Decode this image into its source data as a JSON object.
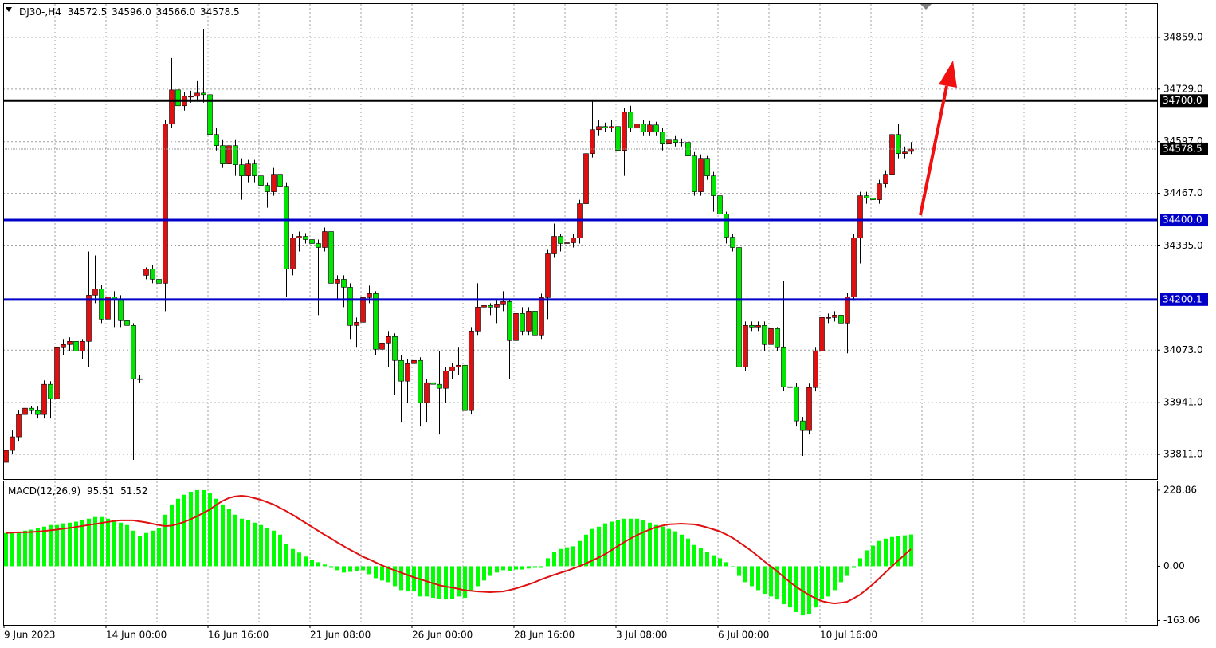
{
  "chart_data": [
    {
      "type": "candlestick",
      "info_label": "DJ30-,H4",
      "ohlc_labels": [
        "34572.5",
        "34596.0",
        "34566.0",
        "34578.5"
      ],
      "categories": [
        "9 Jun 2023",
        null,
        null,
        null,
        null,
        null,
        null,
        null,
        null,
        null,
        null,
        null,
        null,
        null,
        null,
        null,
        "14 Jun 00:00",
        null,
        null,
        null,
        null,
        null,
        null,
        null,
        null,
        null,
        null,
        null,
        null,
        null,
        null,
        null,
        "16 Jun 16:00",
        null,
        null,
        null,
        null,
        null,
        null,
        null,
        null,
        null,
        null,
        null,
        null,
        null,
        null,
        null,
        "21 Jun 08:00",
        null,
        null,
        null,
        null,
        null,
        null,
        null,
        null,
        null,
        null,
        null,
        null,
        null,
        null,
        null,
        "26 Jun 00:00",
        null,
        null,
        null,
        null,
        null,
        null,
        null,
        null,
        null,
        null,
        null,
        null,
        null,
        null,
        null,
        "28 Jun 16:00",
        null,
        null,
        null,
        null,
        null,
        null,
        null,
        null,
        null,
        null,
        null,
        null,
        null,
        null,
        null,
        "3 Jul 08:00",
        null,
        null,
        null,
        null,
        null,
        null,
        null,
        null,
        null,
        null,
        null,
        null,
        null,
        null,
        null,
        "6 Jul 00:00",
        null,
        null,
        null,
        null,
        null,
        null,
        null,
        null,
        null,
        null,
        null,
        null,
        null,
        null,
        null,
        "10 Jul 16:00",
        null,
        null,
        null,
        null,
        null,
        null,
        null,
        null,
        null,
        null,
        null,
        null,
        null,
        null
      ],
      "open": [
        33791,
        33821,
        33855,
        33911,
        33927,
        33921,
        33911,
        33987,
        33951,
        34081,
        34087,
        34095,
        34071,
        34095,
        34211,
        34227,
        34151,
        34207,
        34201,
        34147,
        34135,
        34001,
        34261,
        34277,
        34251,
        34241,
        34641,
        34727,
        34687,
        34711,
        34711,
        34719,
        34715,
        34615,
        34587,
        34541,
        34587,
        34539,
        34511,
        34541,
        34511,
        34487,
        34471,
        34515,
        34485,
        34277,
        34355,
        34359,
        34351,
        34341,
        34331,
        34371,
        34241,
        34251,
        34231,
        34135,
        34143,
        34205,
        34215,
        34075,
        34091,
        34107,
        34047,
        33995,
        34039,
        34047,
        33941,
        33991,
        33987,
        33977,
        34021,
        34031,
        34035,
        33921,
        34121,
        34181,
        34185,
        34181,
        34187,
        34195,
        34097,
        34165,
        34121,
        34171,
        34111,
        34205,
        34315,
        34359,
        34341,
        34343,
        34355,
        34441,
        34567,
        34627,
        34635,
        34631,
        34635,
        34575,
        34671,
        34631,
        34641,
        34621,
        34639,
        34621,
        34591,
        34601,
        34595,
        34595,
        34561,
        34471,
        34555,
        34511,
        34461,
        34415,
        34357,
        34331,
        34031,
        34135,
        34131,
        34135,
        34087,
        34127,
        34081,
        33981,
        33981,
        33895,
        33871,
        33979,
        34071,
        34155,
        34155,
        34161,
        34141,
        34207,
        34355,
        34461,
        34455,
        34451,
        34491,
        34515,
        34615,
        34567,
        34572.5
      ],
      "high": [
        33831,
        33871,
        33921,
        33937,
        33933,
        33931,
        33997,
        33995,
        34091,
        34101,
        34105,
        34121,
        34101,
        34321,
        34311,
        34237,
        34215,
        34221,
        34211,
        34155,
        34141,
        34011,
        34281,
        34287,
        34261,
        34651,
        34807,
        34735,
        34721,
        34725,
        34751,
        34881,
        34731,
        34631,
        34601,
        34597,
        34601,
        34555,
        34551,
        34551,
        34521,
        34495,
        34531,
        34525,
        34495,
        34365,
        34371,
        34367,
        34371,
        34351,
        34381,
        34381,
        34261,
        34261,
        34241,
        34155,
        34221,
        34235,
        34221,
        34131,
        34121,
        34115,
        34061,
        34051,
        34061,
        34055,
        34001,
        34001,
        34071,
        34031,
        34041,
        34081,
        34047,
        34131,
        34241,
        34195,
        34191,
        34197,
        34221,
        34201,
        34175,
        34181,
        34181,
        34181,
        34215,
        34325,
        34391,
        34365,
        34371,
        34365,
        34451,
        34577,
        34701,
        34651,
        34645,
        34651,
        34645,
        34681,
        34687,
        34651,
        34651,
        34649,
        34647,
        34631,
        34611,
        34611,
        34605,
        34601,
        34571,
        34565,
        34561,
        34521,
        34471,
        34421,
        34365,
        34341,
        34145,
        34145,
        34145,
        34145,
        34137,
        34131,
        34247,
        33995,
        33991,
        33905,
        33989,
        34081,
        34165,
        34165,
        34171,
        34171,
        34217,
        34365,
        34471,
        34471,
        34465,
        34501,
        34525,
        34791,
        34641,
        34585,
        34596
      ],
      "low": [
        33761,
        33811,
        33845,
        33901,
        33911,
        33901,
        33901,
        33901,
        33941,
        34061,
        34071,
        34061,
        34051,
        34031,
        34191,
        34141,
        34141,
        34131,
        34131,
        34121,
        33797,
        33991,
        34251,
        34241,
        34171,
        34171,
        34631,
        34661,
        34675,
        34695,
        34701,
        34695,
        34605,
        34575,
        34531,
        34531,
        34511,
        34451,
        34495,
        34495,
        34455,
        34431,
        34461,
        34381,
        34207,
        34261,
        34321,
        34341,
        34291,
        34161,
        34321,
        34231,
        34201,
        34181,
        34101,
        34081,
        34131,
        34191,
        34061,
        34051,
        34031,
        33961,
        33891,
        33941,
        34011,
        33881,
        33891,
        33951,
        33861,
        33941,
        34001,
        34011,
        33901,
        33911,
        34111,
        34165,
        34161,
        34141,
        34171,
        34001,
        34031,
        34111,
        34111,
        34057,
        34101,
        34151,
        34305,
        34321,
        34321,
        34331,
        34341,
        34431,
        34557,
        34611,
        34621,
        34621,
        34565,
        34511,
        34621,
        34625,
        34611,
        34611,
        34611,
        34575,
        34585,
        34585,
        34585,
        34541,
        34461,
        34461,
        34501,
        34421,
        34405,
        34341,
        34321,
        33971,
        34021,
        34121,
        34121,
        34071,
        34011,
        34071,
        33971,
        33961,
        33881,
        33807,
        33861,
        33969,
        34061,
        34141,
        34145,
        34131,
        34065,
        34197,
        34291,
        34441,
        34421,
        34441,
        34481,
        34505,
        34555,
        34555,
        34566
      ],
      "close": [
        33821,
        33855,
        33911,
        33927,
        33921,
        33911,
        33987,
        33951,
        34081,
        34087,
        34095,
        34071,
        34095,
        34211,
        34227,
        34151,
        34207,
        34201,
        34147,
        34135,
        34001,
        34001,
        34277,
        34251,
        34241,
        34641,
        34727,
        34687,
        34711,
        34711,
        34719,
        34715,
        34615,
        34587,
        34541,
        34587,
        34539,
        34511,
        34541,
        34511,
        34487,
        34471,
        34515,
        34485,
        34277,
        34355,
        34359,
        34351,
        34341,
        34331,
        34371,
        34241,
        34251,
        34231,
        34135,
        34143,
        34205,
        34215,
        34075,
        34091,
        34107,
        34047,
        33995,
        34039,
        34047,
        33941,
        33991,
        33987,
        33977,
        34021,
        34031,
        34035,
        33921,
        34121,
        34181,
        34185,
        34181,
        34187,
        34195,
        34097,
        34165,
        34121,
        34171,
        34111,
        34205,
        34315,
        34359,
        34341,
        34343,
        34355,
        34441,
        34567,
        34627,
        34635,
        34631,
        34635,
        34575,
        34671,
        34631,
        34641,
        34621,
        34639,
        34621,
        34591,
        34601,
        34595,
        34595,
        34561,
        34471,
        34555,
        34511,
        34461,
        34415,
        34357,
        34331,
        34031,
        34135,
        34131,
        34135,
        34087,
        34127,
        34081,
        33981,
        33981,
        33895,
        33871,
        33979,
        34071,
        34155,
        34155,
        34161,
        34141,
        34207,
        34355,
        34461,
        34455,
        34451,
        34491,
        34515,
        34615,
        34567,
        34571,
        34578.5
      ],
      "up_color": "#e01010",
      "down_color": "#00e600",
      "ylim": [
        33749,
        34943
      ],
      "yticks": [
        {
          "value": 34859,
          "label": "34859.0"
        },
        {
          "value": 34729,
          "label": "34729.0"
        },
        {
          "value": 34597,
          "label": "34597.0"
        },
        {
          "value": 34467,
          "label": "34467.0"
        },
        {
          "value": 34335,
          "label": "34335.0"
        },
        {
          "value": 34073,
          "label": "34073.0"
        },
        {
          "value": 33941,
          "label": "33941.0"
        },
        {
          "value": 33811,
          "label": "33811.0"
        }
      ],
      "levels": [
        {
          "value": 34700,
          "label": "34700.0",
          "color": "#000000"
        },
        {
          "value": 34400,
          "label": "34400.0",
          "color": "#0000c8"
        },
        {
          "value": 34200.1,
          "label": "34200.1",
          "color": "#0000c8"
        }
      ],
      "grid": true
    },
    {
      "type": "macd",
      "label": "MACD(12,26,9)",
      "ylim": [
        -176.4,
        255.1
      ],
      "yticks": [
        228.86,
        {
          "value": 0,
          "label": "0.00"
        },
        -163.06
      ],
      "histogram": {
        "color": "#00ff00",
        "values": [
          100,
          100,
          102,
          107,
          110,
          114,
          119,
          124,
          124,
          129,
          131,
          134,
          138,
          143,
          148,
          148,
          143,
          138,
          131,
          124,
          107,
          91,
          100,
          107,
          114,
          155,
          186,
          203,
          215,
          224,
          229,
          229,
          219,
          203,
          186,
          172,
          155,
          143,
          138,
          131,
          124,
          114,
          107,
          95,
          67,
          52,
          41,
          29,
          19,
          12,
          5,
          -5,
          -12,
          -19,
          -17,
          -14,
          -12,
          -24,
          -36,
          -43,
          -48,
          -60,
          -72,
          -76,
          -76,
          -91,
          -91,
          -95,
          -98,
          -100,
          -98,
          -91,
          -95,
          -76,
          -60,
          -43,
          -29,
          -19,
          -12,
          -14,
          -10,
          -10,
          -7,
          -5,
          -5,
          24,
          43,
          52,
          57,
          60,
          76,
          95,
          112,
          119,
          129,
          134,
          138,
          143,
          143,
          143,
          138,
          131,
          124,
          119,
          112,
          105,
          95,
          83,
          64,
          55,
          43,
          33,
          24,
          12,
          0,
          -29,
          -48,
          -60,
          -72,
          -83,
          -91,
          -100,
          -114,
          -124,
          -138,
          -148,
          -143,
          -124,
          -100,
          -91,
          -72,
          -48,
          -29,
          -5,
          24,
          48,
          62,
          76,
          83,
          88,
          90,
          93,
          95.51
        ]
      },
      "signal": {
        "color": "#e01010",
        "values": [
          100,
          101,
          102,
          102,
          103,
          104,
          106,
          108,
          110,
          113,
          115,
          118,
          121,
          124,
          127,
          130,
          133,
          136,
          138,
          138,
          138,
          135,
          132,
          128,
          124,
          121,
          122,
          127,
          133,
          141,
          150,
          160,
          170,
          184,
          196,
          205,
          210,
          212,
          210,
          205,
          200,
          193,
          186,
          176,
          166,
          155,
          143,
          131,
          119,
          107,
          95,
          84,
          72,
          61,
          50,
          40,
          29,
          21,
          12,
          3,
          -5,
          -12,
          -19,
          -26,
          -33,
          -39,
          -45,
          -51,
          -57,
          -61,
          -64,
          -68,
          -72,
          -74,
          -76,
          -77,
          -78,
          -77,
          -76,
          -72,
          -67,
          -61,
          -55,
          -48,
          -40,
          -33,
          -26,
          -20,
          -14,
          -7,
          0,
          8,
          17,
          26,
          36,
          48,
          60,
          72,
          83,
          93,
          102,
          110,
          117,
          122,
          126,
          127,
          128,
          127,
          126,
          122,
          117,
          111,
          105,
          96,
          86,
          73,
          60,
          46,
          31,
          15,
          0,
          -15,
          -31,
          -47,
          -62,
          -74,
          -86,
          -96,
          -105,
          -109,
          -112,
          -110,
          -107,
          -97,
          -86,
          -71,
          -55,
          -37,
          -19,
          -1,
          17,
          34,
          51.52
        ]
      }
    }
  ]
}
